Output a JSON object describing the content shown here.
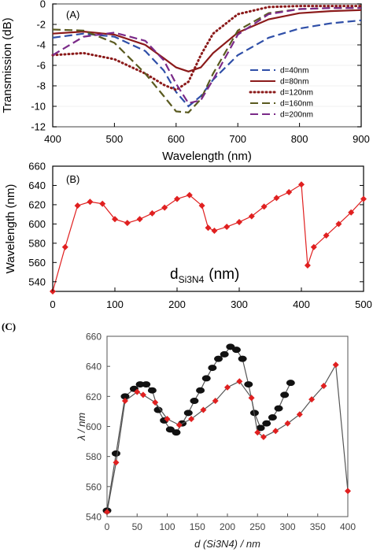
{
  "chart_data": [
    {
      "panel": "(A)",
      "type": "line",
      "xlabel": "Wavelength (nm)",
      "ylabel": "Transmission (dB)",
      "xlim": [
        400,
        900
      ],
      "ylim": [
        -12,
        0
      ],
      "xticks": [
        "400",
        "500",
        "600",
        "700",
        "800",
        "900"
      ],
      "yticks": [
        "0",
        "-2",
        "-4",
        "-6",
        "-8",
        "-10",
        "-12"
      ],
      "legend": "right-center",
      "series": [
        {
          "name": "d=40nm",
          "color": "#2f4fa8",
          "style": "dash",
          "x": [
            400,
            450,
            500,
            550,
            580,
            600,
            620,
            640,
            660,
            700,
            750,
            800,
            850,
            900
          ],
          "y": [
            -3.3,
            -2.9,
            -3.2,
            -4.6,
            -6.5,
            -8.6,
            -10.0,
            -9.0,
            -7.4,
            -5.0,
            -3.3,
            -2.4,
            -1.9,
            -1.6
          ]
        },
        {
          "name": "d=80nm",
          "color": "#8b1a1a",
          "style": "solid",
          "x": [
            400,
            450,
            500,
            550,
            580,
            600,
            620,
            640,
            660,
            700,
            750,
            800,
            850,
            900
          ],
          "y": [
            -2.9,
            -2.7,
            -3.0,
            -4.0,
            -5.3,
            -6.2,
            -6.6,
            -6.2,
            -4.8,
            -2.8,
            -1.5,
            -0.9,
            -0.7,
            -0.6
          ]
        },
        {
          "name": "d=120nm",
          "color": "#8b1a1a",
          "style": "dot",
          "x": [
            400,
            450,
            500,
            550,
            580,
            600,
            620,
            640,
            660,
            700,
            750,
            800,
            850,
            900
          ],
          "y": [
            -5.0,
            -4.8,
            -5.4,
            -6.8,
            -7.9,
            -8.4,
            -7.6,
            -5.0,
            -2.9,
            -1.0,
            -0.3,
            -0.2,
            -0.2,
            -0.2
          ]
        },
        {
          "name": "d=160nm",
          "color": "#5a5a20",
          "style": "dash",
          "x": [
            400,
            450,
            500,
            550,
            580,
            600,
            620,
            640,
            660,
            700,
            750,
            800,
            850,
            900
          ],
          "y": [
            -2.5,
            -2.6,
            -3.8,
            -6.8,
            -9.0,
            -10.5,
            -10.6,
            -9.3,
            -6.8,
            -2.6,
            -0.9,
            -0.5,
            -0.4,
            -0.4
          ]
        },
        {
          "name": "d=200nm",
          "color": "#7a2a88",
          "style": "dash",
          "x": [
            400,
            450,
            500,
            550,
            580,
            600,
            620,
            640,
            660,
            700,
            750,
            800,
            850,
            900
          ],
          "y": [
            -5.0,
            -3.2,
            -2.8,
            -3.6,
            -5.5,
            -7.8,
            -9.7,
            -9.4,
            -7.4,
            -3.0,
            -1.0,
            -0.5,
            -0.4,
            -0.4
          ]
        }
      ]
    },
    {
      "panel": "(B)",
      "type": "line",
      "xlabel": "",
      "ylabel": "Wavelength (nm)",
      "annotation": "d",
      "annotation_sub": "Si3N4",
      "annotation_suffix": "(nm)",
      "xlim": [
        0,
        500
      ],
      "ylim": [
        530,
        660
      ],
      "xticks": [
        "0",
        "100",
        "200",
        "300",
        "400",
        "500"
      ],
      "yticks": [
        "540",
        "560",
        "580",
        "600",
        "620",
        "640",
        "660"
      ],
      "series": [
        {
          "name": "",
          "color": "#e02020",
          "marker": "diamond",
          "x": [
            0,
            20,
            40,
            60,
            80,
            100,
            120,
            140,
            160,
            180,
            200,
            220,
            240,
            250,
            260,
            280,
            300,
            320,
            340,
            360,
            380,
            400,
            410,
            420,
            440,
            460,
            480,
            500
          ],
          "y": [
            530,
            576,
            619,
            623,
            621,
            605,
            601,
            605,
            611,
            617,
            626,
            630,
            619,
            596,
            593,
            597,
            602,
            608,
            618,
            627,
            633,
            641,
            557,
            576,
            588,
            600,
            612,
            626
          ]
        }
      ]
    },
    {
      "panel": "(C)",
      "type": "line",
      "xlabel": "d (Si3N4) / nm",
      "ylabel": "λ / nm",
      "xlim": [
        0,
        400
      ],
      "ylim": [
        540,
        660
      ],
      "xticks": [
        "0",
        "50",
        "100",
        "150",
        "200",
        "250",
        "300",
        "350",
        "400"
      ],
      "yticks": [
        "540",
        "560",
        "580",
        "600",
        "620",
        "640",
        "660"
      ],
      "series": [
        {
          "name": "",
          "color": "#111111",
          "marker": "circle",
          "x": [
            0,
            15,
            30,
            45,
            55,
            65,
            75,
            85,
            95,
            105,
            115,
            125,
            135,
            145,
            155,
            165,
            175,
            185,
            195,
            205,
            215,
            225,
            235,
            245,
            255,
            265,
            275,
            285,
            295,
            305
          ],
          "y": [
            544,
            582,
            620,
            625,
            628,
            628,
            624,
            611,
            604,
            598,
            596,
            602,
            609,
            617,
            624,
            632,
            639,
            645,
            648,
            653,
            651,
            645,
            628,
            609,
            599,
            602,
            606,
            612,
            621,
            629
          ]
        },
        {
          "name": "",
          "color": "#e02020",
          "marker": "diamond",
          "x": [
            0,
            15,
            30,
            50,
            60,
            80,
            100,
            120,
            140,
            160,
            180,
            200,
            220,
            240,
            250,
            260,
            280,
            300,
            320,
            340,
            360,
            380,
            400
          ],
          "y": [
            543,
            576,
            617,
            623,
            621,
            616,
            605,
            601,
            605,
            611,
            617,
            626,
            630,
            619,
            596,
            593,
            597,
            602,
            608,
            618,
            627,
            641,
            557
          ]
        }
      ]
    }
  ]
}
